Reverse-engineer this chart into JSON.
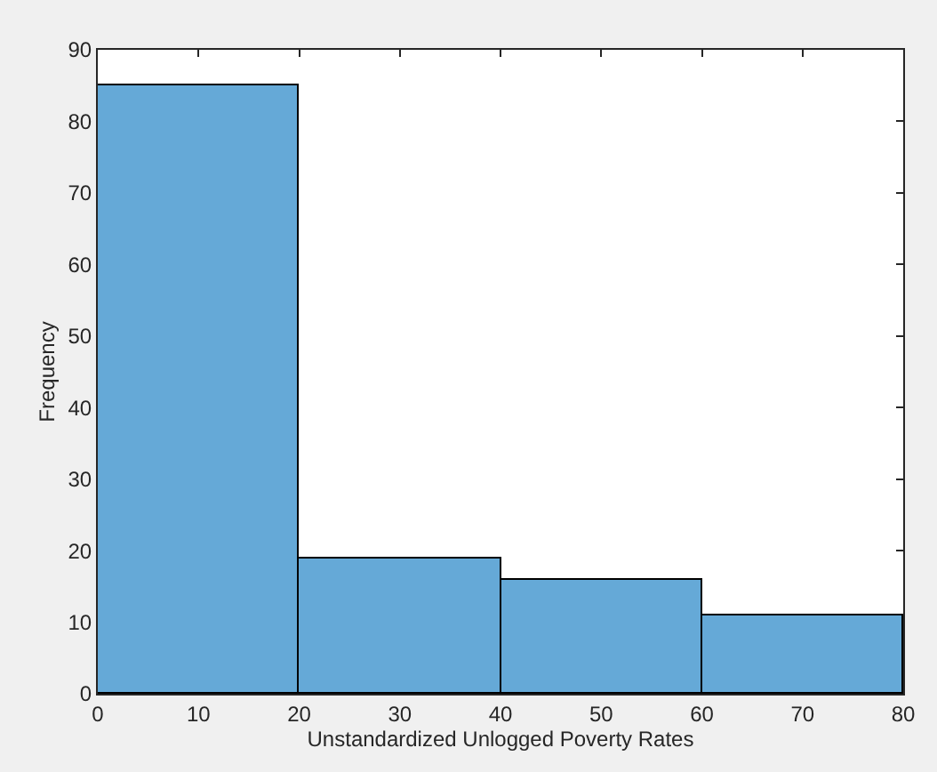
{
  "chart_data": {
    "type": "histogram",
    "xlabel": "Unstandardized Unlogged Poverty Rates",
    "ylabel": "Frequency",
    "bins": [
      0,
      20,
      40,
      60,
      80
    ],
    "values": [
      85,
      19,
      16,
      11
    ],
    "color": "#65a9d7",
    "xlim": [
      0,
      80
    ],
    "xticks": [
      0,
      10,
      20,
      30,
      40,
      50,
      60,
      70,
      80
    ],
    "ylim": [
      0,
      90
    ],
    "yticks": [
      0,
      10,
      20,
      30,
      40,
      50,
      60,
      70,
      80,
      90
    ]
  }
}
